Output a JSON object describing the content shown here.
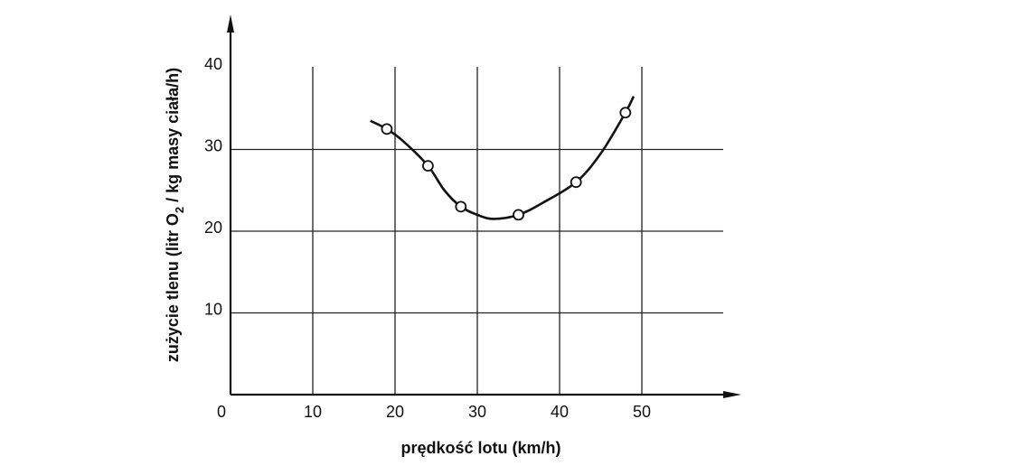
{
  "chart_data": {
    "type": "line",
    "title": "",
    "xlabel": "prędkość lotu (km/h)",
    "ylabel": {
      "pre": "zużycie tlenu (litr O",
      "sub": "2",
      "post": " / kg masy ciała/h)"
    },
    "xlim": [
      0,
      60
    ],
    "ylim": [
      0,
      45
    ],
    "xticks": [
      "0",
      "10",
      "20",
      "30",
      "40",
      "50"
    ],
    "yticks": [
      "10",
      "20",
      "30",
      "40"
    ],
    "grid": true,
    "series": [
      {
        "points": [
          {
            "x": 19,
            "y": 32.5
          },
          {
            "x": 24,
            "y": 28
          },
          {
            "x": 28,
            "y": 23
          },
          {
            "x": 35,
            "y": 22
          },
          {
            "x": 42,
            "y": 26
          },
          {
            "x": 48,
            "y": 34.5
          }
        ],
        "curve": [
          [
            17,
            33.5
          ],
          [
            19,
            32.5
          ],
          [
            21,
            31
          ],
          [
            24,
            28
          ],
          [
            26,
            25
          ],
          [
            28,
            23
          ],
          [
            30,
            22
          ],
          [
            32,
            21.5
          ],
          [
            35,
            22
          ],
          [
            38,
            23.5
          ],
          [
            42,
            26
          ],
          [
            45,
            29.5
          ],
          [
            48,
            34.5
          ],
          [
            49,
            36.5
          ]
        ]
      }
    ]
  }
}
